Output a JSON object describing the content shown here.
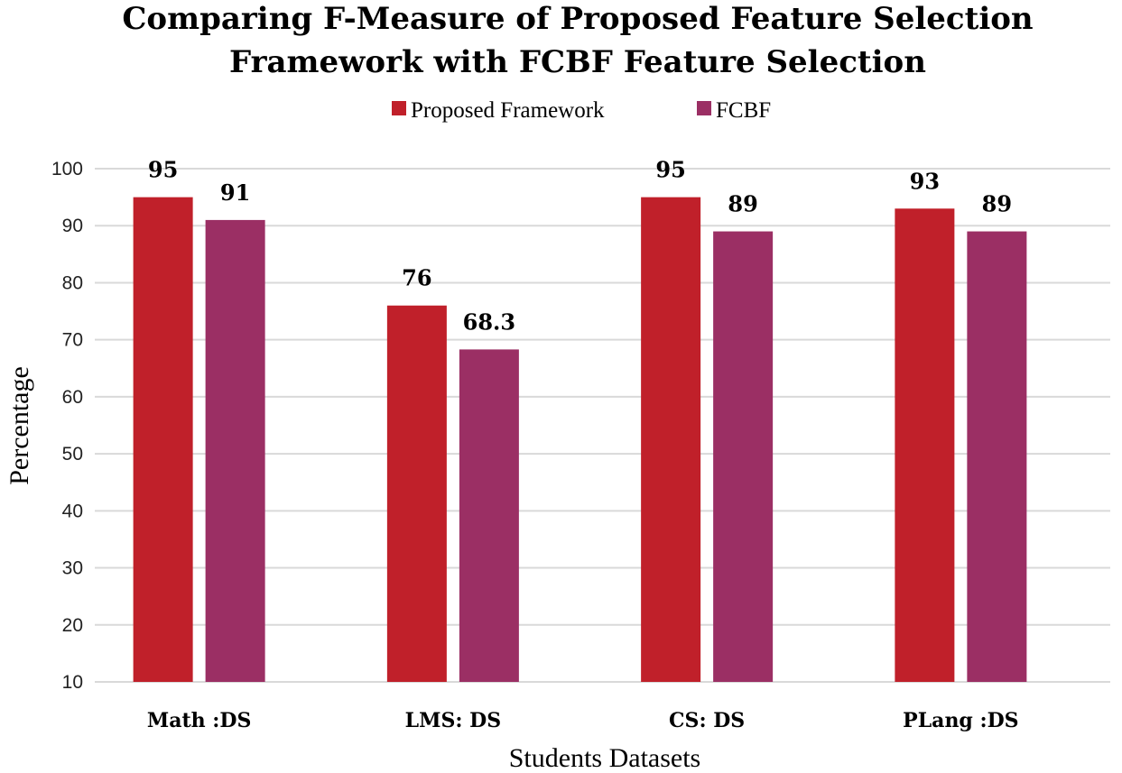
{
  "chart_data": {
    "type": "bar",
    "title_lines": [
      "Comparing F-Measure of Proposed Feature Selection",
      "Framework with FCBF Feature Selection"
    ],
    "xlabel": "Students Datasets",
    "ylabel": "Percentage",
    "ylim": [
      10,
      100
    ],
    "yticks": [
      10,
      20,
      30,
      40,
      50,
      60,
      70,
      80,
      90,
      100
    ],
    "grid": true,
    "legend_position": "top",
    "categories": [
      "Math :DS",
      "LMS: DS",
      "CS: DS",
      "PLang :DS"
    ],
    "series": [
      {
        "name": "Proposed Framework",
        "color": "#c0202a",
        "values": [
          95,
          76,
          95,
          93
        ],
        "labels": [
          "95",
          "76",
          "95",
          "93"
        ]
      },
      {
        "name": "FCBF",
        "color": "#9b2f64",
        "values": [
          91,
          68.3,
          89,
          89
        ],
        "labels": [
          "91",
          "68.3",
          "89",
          "89"
        ]
      }
    ]
  }
}
